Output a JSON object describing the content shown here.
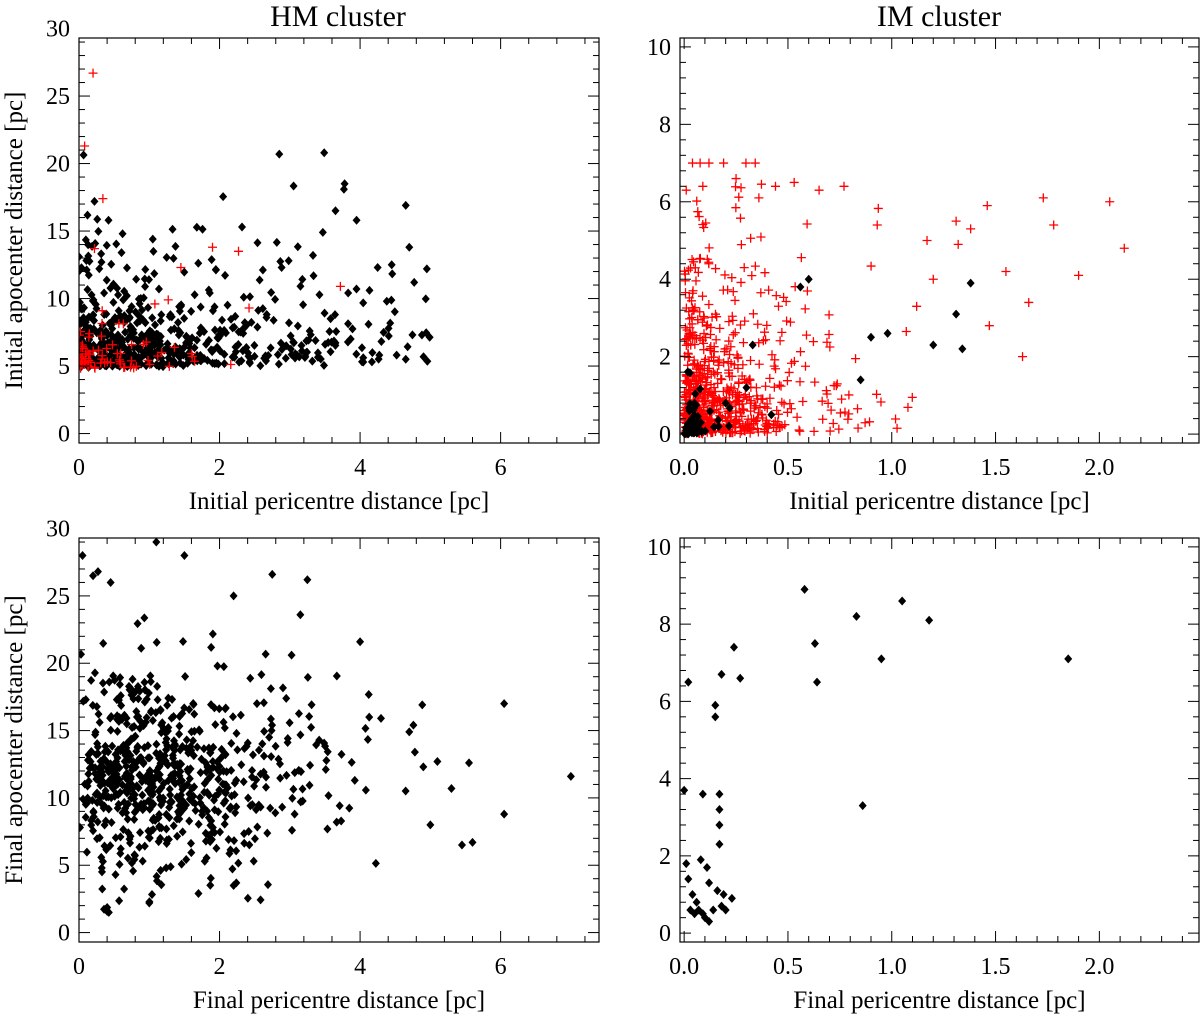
{
  "figure": {
    "column_titles": [
      "HM cluster",
      "IM cluster"
    ],
    "marker_colors": {
      "black_diamond": "#000000",
      "red_plus": "#ff0000"
    }
  },
  "chart_data": [
    {
      "id": "hm-initial",
      "type": "scatter",
      "xlabel": "Initial pericentre distance [pc]",
      "ylabel": "Initial apocenter distance [pc]",
      "xlim": [
        0,
        7.4
      ],
      "ylim": [
        -0.7,
        29.3
      ],
      "xticks": [
        0,
        2,
        4,
        6
      ],
      "xtick_labels": [
        "0",
        "2",
        "4",
        "6"
      ],
      "yticks": [
        0,
        5,
        10,
        15,
        20,
        25,
        30
      ],
      "ytick_labels": [
        "0",
        "5",
        "10",
        "15",
        "20",
        "25",
        "30"
      ],
      "series": [
        {
          "name": "black diamonds",
          "marker": "diamond",
          "color": "#000000",
          "generate": {
            "seed": 11,
            "n": 600,
            "x": [
              0.0,
              5.0
            ],
            "xdist": "exp",
            "xscale": 1.4,
            "y": [
              4.9,
              20.8
            ],
            "ymin": 4.9,
            "yrelscale": 2.0,
            "yrelmax": 9.0,
            "ytail": 0.1
          },
          "points": [
            [
              2.85,
              20.7
            ],
            [
              3.78,
              18.5
            ],
            [
              3.77,
              18.1
            ],
            [
              4.65,
              16.9
            ],
            [
              3.65,
              16.5
            ],
            [
              0.22,
              17.2
            ],
            [
              0.42,
              15.8
            ],
            [
              0.62,
              14.8
            ],
            [
              1.05,
              14.4
            ],
            [
              3.95,
              15.8
            ],
            [
              3.47,
              14.9
            ],
            [
              4.7,
              13.8
            ],
            [
              2.32,
              15.3
            ],
            [
              3.33,
              13.2
            ],
            [
              4.95,
              12.2
            ],
            [
              4.45,
              12.5
            ],
            [
              4.25,
              12.3
            ],
            [
              4.77,
              11.2
            ],
            [
              4.88,
              7.3
            ],
            [
              4.65,
              5.5
            ],
            [
              4.12,
              8.1
            ],
            [
              4.38,
              9.8
            ],
            [
              3.58,
              8.5
            ],
            [
              0.0,
              13.1
            ],
            [
              0.32,
              12.7
            ]
          ]
        },
        {
          "name": "red crosses",
          "marker": "plus",
          "color": "#ff0000",
          "generate": {
            "seed": 23,
            "n": 70,
            "x": [
              0.0,
              2.2
            ],
            "xdist": "exp",
            "xscale": 0.6,
            "y": [
              4.8,
              14.0
            ],
            "ymin": 4.8,
            "yrelscale": 1.0,
            "yrelmax": 4.0,
            "ytail": 0.05
          },
          "points": [
            [
              0.2,
              26.7
            ],
            [
              0.08,
              21.3
            ],
            [
              0.34,
              17.4
            ],
            [
              0.22,
              13.7
            ],
            [
              1.9,
              13.8
            ],
            [
              2.27,
              13.5
            ],
            [
              1.45,
              12.3
            ],
            [
              3.72,
              10.9
            ],
            [
              1.27,
              9.9
            ],
            [
              2.42,
              9.3
            ],
            [
              0.33,
              9.1
            ],
            [
              1.08,
              9.6
            ]
          ]
        }
      ]
    },
    {
      "id": "im-initial",
      "type": "scatter",
      "xlabel": "Initial pericentre distance [pc]",
      "ylabel": "",
      "xlim": [
        -0.02,
        2.48
      ],
      "ylim": [
        -0.23,
        10.23
      ],
      "xticks": [
        0,
        0.5,
        1.0,
        1.5,
        2.0
      ],
      "xtick_labels": [
        "0.0",
        "0.5",
        "1.0",
        "1.5",
        "2.0"
      ],
      "yticks": [
        0,
        2,
        4,
        6,
        8,
        10
      ],
      "ytick_labels": [
        "0",
        "2",
        "4",
        "6",
        "8",
        "10"
      ],
      "series": [
        {
          "name": "red crosses",
          "marker": "plus",
          "color": "#ff0000",
          "generate": {
            "seed": 37,
            "n": 700,
            "x": [
              0.0,
              1.2
            ],
            "xdist": "exp",
            "xscale": 0.22,
            "y": [
              0.0,
              7.0
            ],
            "ymin": 0.0,
            "yrelscale": 1.2,
            "yrelmax": 6.5,
            "ytail": 0.05
          },
          "points": [
            [
              0.19,
              7.0
            ],
            [
              0.53,
              6.5
            ],
            [
              2.12,
              4.8
            ],
            [
              2.05,
              6.0
            ],
            [
              1.73,
              6.1
            ],
            [
              1.78,
              5.4
            ],
            [
              1.66,
              3.4
            ],
            [
              1.63,
              2.0
            ],
            [
              1.9,
              4.1
            ],
            [
              1.55,
              4.2
            ],
            [
              1.46,
              5.9
            ],
            [
              1.47,
              2.8
            ],
            [
              1.38,
              5.3
            ],
            [
              1.31,
              5.5
            ],
            [
              1.32,
              4.9
            ],
            [
              1.17,
              5.0
            ],
            [
              1.12,
              3.3
            ],
            [
              1.2,
              4.0
            ],
            [
              0.93,
              5.4
            ],
            [
              0.77,
              6.4
            ],
            [
              0.65,
              6.3
            ],
            [
              0.44,
              6.4
            ],
            [
              0.36,
              6.1
            ],
            [
              0.25,
              6.6
            ],
            [
              0.09,
              6.4
            ],
            [
              0.01,
              6.3
            ]
          ]
        },
        {
          "name": "black diamonds",
          "marker": "diamond",
          "color": "#000000",
          "generate": {
            "seed": 41,
            "n": 60,
            "x": [
              0.0,
              0.35
            ],
            "xdist": "exp",
            "xscale": 0.06,
            "y": [
              0.0,
              2.0
            ],
            "ymin": 0.0,
            "yrelscale": 0.35,
            "yrelmax": 1.8,
            "ytail": 0.0
          },
          "points": [
            [
              1.38,
              3.9
            ],
            [
              1.31,
              3.1
            ],
            [
              1.34,
              2.2
            ],
            [
              1.2,
              2.3
            ],
            [
              0.98,
              2.6
            ],
            [
              0.9,
              2.5
            ],
            [
              0.85,
              1.4
            ],
            [
              0.6,
              4.0
            ],
            [
              0.56,
              3.8
            ],
            [
              0.42,
              0.5
            ],
            [
              0.3,
              1.2
            ],
            [
              0.33,
              2.3
            ],
            [
              0.2,
              0.8
            ]
          ]
        }
      ]
    },
    {
      "id": "hm-final",
      "type": "scatter",
      "xlabel": "Final pericentre distance [pc]",
      "ylabel": "Final apocenter distance [pc]",
      "xlim": [
        0,
        7.4
      ],
      "ylim": [
        -0.7,
        29.3
      ],
      "xticks": [
        0,
        2,
        4,
        6
      ],
      "xtick_labels": [
        "0",
        "2",
        "4",
        "6"
      ],
      "yticks": [
        0,
        5,
        10,
        15,
        20,
        25,
        30
      ],
      "ytick_labels": [
        "0",
        "5",
        "10",
        "15",
        "20",
        "25",
        "30"
      ],
      "series": [
        {
          "name": "black diamonds",
          "marker": "diamond",
          "color": "#000000",
          "generate": {
            "seed": 53,
            "n": 700,
            "x": [
              0.0,
              5.0
            ],
            "xdist": "gamma",
            "xscale": 1.2,
            "y": [
              1.5,
              29.5
            ],
            "ymin": 1.5,
            "ycentre": 9.0,
            "yspread": 5.0
          },
          "points": [
            [
              0.8,
              29.6
            ],
            [
              1.1,
              29.0
            ],
            [
              1.5,
              28.0
            ],
            [
              0.05,
              28.0
            ],
            [
              0.27,
              26.8
            ],
            [
              0.2,
              26.5
            ],
            [
              2.75,
              26.6
            ],
            [
              3.25,
              26.2
            ],
            [
              0.45,
              26.0
            ],
            [
              2.2,
              25.0
            ],
            [
              3.15,
              23.6
            ],
            [
              4.0,
              21.6
            ],
            [
              6.05,
              17.0
            ],
            [
              4.7,
              14.9
            ],
            [
              4.78,
              13.4
            ],
            [
              4.9,
              12.3
            ],
            [
              5.1,
              12.7
            ],
            [
              5.55,
              12.6
            ],
            [
              5.3,
              10.7
            ],
            [
              6.05,
              8.8
            ],
            [
              7.0,
              11.6
            ],
            [
              5.0,
              8.0
            ],
            [
              5.45,
              6.5
            ],
            [
              5.6,
              6.7
            ],
            [
              4.13,
              16.0
            ],
            [
              1.7,
              2.9
            ],
            [
              2.2,
              3.5
            ],
            [
              1.0,
              2.2
            ]
          ]
        }
      ]
    },
    {
      "id": "im-final",
      "type": "scatter",
      "xlabel": "Final pericentre distance [pc]",
      "ylabel": "",
      "xlim": [
        -0.02,
        2.48
      ],
      "ylim": [
        -0.23,
        10.23
      ],
      "xticks": [
        0,
        0.5,
        1.0,
        1.5,
        2.0
      ],
      "xtick_labels": [
        "0.0",
        "0.5",
        "1.0",
        "1.5",
        "2.0"
      ],
      "yticks": [
        0,
        2,
        4,
        6,
        8,
        10
      ],
      "ytick_labels": [
        "0",
        "2",
        "4",
        "6",
        "8",
        "10"
      ],
      "series": [
        {
          "name": "black diamonds",
          "marker": "diamond",
          "color": "#000000",
          "points": [
            [
              0.58,
              8.9
            ],
            [
              1.05,
              8.6
            ],
            [
              0.83,
              8.2
            ],
            [
              1.18,
              8.1
            ],
            [
              0.63,
              7.5
            ],
            [
              0.95,
              7.1
            ],
            [
              1.85,
              7.1
            ],
            [
              0.64,
              6.5
            ],
            [
              0.24,
              7.4
            ],
            [
              0.27,
              6.6
            ],
            [
              0.18,
              6.7
            ],
            [
              0.15,
              5.9
            ],
            [
              0.15,
              5.6
            ],
            [
              0.02,
              6.5
            ],
            [
              0.86,
              3.3
            ],
            [
              0.0,
              3.7
            ],
            [
              0.09,
              3.6
            ],
            [
              0.17,
              3.6
            ],
            [
              0.17,
              3.2
            ],
            [
              0.17,
              2.8
            ],
            [
              0.17,
              2.3
            ],
            [
              0.08,
              1.9
            ],
            [
              0.11,
              1.7
            ],
            [
              0.12,
              1.3
            ],
            [
              0.16,
              1.1
            ],
            [
              0.01,
              1.8
            ],
            [
              0.02,
              1.4
            ],
            [
              0.04,
              1.0
            ],
            [
              0.06,
              0.8
            ],
            [
              0.07,
              0.6
            ],
            [
              0.05,
              0.5
            ],
            [
              0.09,
              0.5
            ],
            [
              0.1,
              0.4
            ],
            [
              0.12,
              0.3
            ],
            [
              0.14,
              0.6
            ],
            [
              0.18,
              0.7
            ],
            [
              0.2,
              0.6
            ],
            [
              0.23,
              0.9
            ],
            [
              0.19,
              1.0
            ],
            [
              0.03,
              0.6
            ]
          ]
        }
      ]
    }
  ]
}
